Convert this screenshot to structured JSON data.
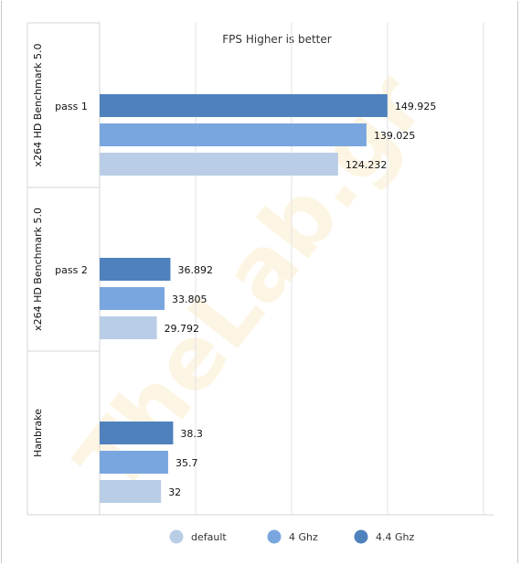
{
  "chart_data": {
    "type": "bar",
    "orientation": "horizontal",
    "title": "FPS  Higher is better",
    "xlim": [
      0,
      200
    ],
    "grid": true,
    "legend_position": "bottom",
    "groups": [
      {
        "outer": "x264 HD Benchmark 5.0",
        "inner": "pass 1"
      },
      {
        "outer": "x264 HD Benchmark 5.0",
        "inner": "pass 2"
      },
      {
        "outer": "Hanbrake",
        "inner": ""
      }
    ],
    "series": [
      {
        "name": "4.4 Ghz",
        "color": "#4f81bd",
        "values": [
          149.925,
          36.892,
          38.3
        ],
        "labels": [
          "149.925",
          "36.892",
          "38.3"
        ]
      },
      {
        "name": "4 Ghz",
        "color": "#7aa6e0",
        "values": [
          139.025,
          33.805,
          35.7
        ],
        "labels": [
          "139.025",
          "33.805",
          "35.7"
        ]
      },
      {
        "name": "default",
        "color": "#b9cde6",
        "values": [
          124.232,
          29.792,
          32
        ],
        "labels": [
          "124.232",
          "29.792",
          "32"
        ]
      }
    ],
    "legend_order": [
      "default",
      "4 Ghz",
      "4.4 Ghz"
    ],
    "watermark": "TheLab.gr"
  }
}
